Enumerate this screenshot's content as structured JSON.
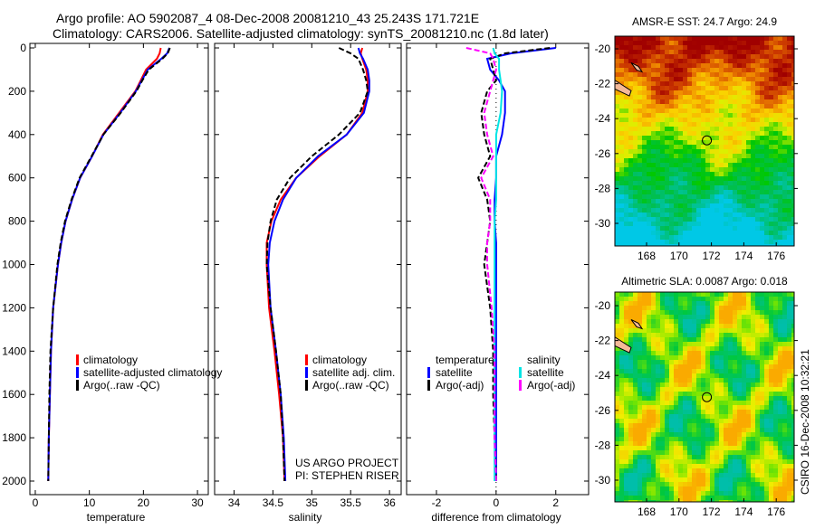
{
  "title_line1": "Argo profile: AO 5902087_4 08-Dec-2008 20081210_43 25.243S 171.721E",
  "title_line2": "Climatology: CARS2006. Satellite-adjusted climatology: synTS_20081210.nc (1.8d later)",
  "credit": "CSIRO 16-Dec-2008 10:32:21",
  "project_line1": "US ARGO PROJECT",
  "project_line2": "PI: STEPHEN RISER",
  "colors": {
    "climatology": "#ff0000",
    "satellite": "#0000ff",
    "argo": "#000000",
    "sal_satellite": "#00e5e5",
    "sal_argo": "#ff00ff"
  },
  "chart_data": [
    {
      "type": "line",
      "xlabel": "temperature",
      "xlim": [
        -1,
        32
      ],
      "ylim": [
        2000,
        0
      ],
      "xticks": [
        "0",
        "10",
        "20",
        "30"
      ],
      "yticks": [
        "0",
        "200",
        "400",
        "600",
        "800",
        "1000",
        "1200",
        "1400",
        "1600",
        "1800",
        "2000"
      ],
      "depth": [
        0,
        25,
        50,
        100,
        150,
        200,
        300,
        400,
        500,
        600,
        700,
        800,
        900,
        1000,
        1200,
        1400,
        1600,
        1800,
        2000
      ],
      "legend": [
        "climatology",
        "satellite-adjusted climatology",
        "Argo(..raw -QC)"
      ],
      "series": [
        {
          "name": "climatology",
          "values": [
            23.2,
            23,
            22.5,
            20.5,
            19.5,
            18.5,
            15.5,
            12.5,
            10.5,
            8.3,
            6.8,
            5.6,
            4.8,
            4.2,
            3.3,
            2.9,
            2.7,
            2.5,
            2.4
          ]
        },
        {
          "name": "satellite-adjusted climatology",
          "values": [
            24.8,
            24.4,
            23.3,
            20.8,
            19.7,
            18.6,
            15.7,
            12.6,
            10.5,
            8.3,
            6.8,
            5.6,
            4.8,
            4.2,
            3.3,
            2.9,
            2.7,
            2.5,
            2.4
          ]
        },
        {
          "name": "Argo(..raw -QC)",
          "values": [
            24.9,
            24.5,
            23.5,
            21,
            19.8,
            18.7,
            15.8,
            12.6,
            10.4,
            8.2,
            6.7,
            5.5,
            4.7,
            4.1,
            3.3,
            2.8,
            2.6,
            2.5,
            2.4
          ]
        }
      ]
    },
    {
      "type": "line",
      "xlabel": "salinity",
      "xlim": [
        33.75,
        36.15
      ],
      "ylim": [
        2000,
        0
      ],
      "xticks": [
        "34",
        "34.5",
        "35",
        "35.5",
        "36"
      ],
      "legend": [
        "climatology",
        "satellite adj. clim.",
        "Argo(..raw -QC)"
      ],
      "series": [
        {
          "name": "climatology",
          "values": [
            35.65,
            35.63,
            35.65,
            35.7,
            35.72,
            35.72,
            35.65,
            35.45,
            35.1,
            34.8,
            34.6,
            34.48,
            34.42,
            34.42,
            34.45,
            34.52,
            34.58,
            34.63,
            34.65
          ]
        },
        {
          "name": "satellite adj. clim.",
          "values": [
            35.6,
            35.62,
            35.66,
            35.72,
            35.74,
            35.74,
            35.67,
            35.45,
            35.08,
            34.8,
            34.63,
            34.52,
            34.46,
            34.44,
            34.47,
            34.54,
            34.6,
            34.64,
            34.66
          ]
        },
        {
          "name": "Argo(..raw -QC)",
          "values": [
            35.35,
            35.5,
            35.6,
            35.66,
            35.7,
            35.72,
            35.62,
            35.35,
            35.0,
            34.72,
            34.55,
            34.47,
            34.43,
            34.42,
            34.47,
            34.54,
            34.6,
            34.63,
            34.65
          ]
        }
      ]
    },
    {
      "type": "line",
      "xlabel": "difference from climatology",
      "xlim": [
        -3,
        3.1
      ],
      "ylim": [
        2000,
        0
      ],
      "xticks": [
        "-2",
        "0",
        "2"
      ],
      "legend_temperature_title": "temperature",
      "legend_salinity_title": "salinity",
      "legend": [
        "satellite",
        "Argo(-adj)",
        "satellite",
        "Argo(-adj)"
      ],
      "series": [
        {
          "name": "temperature satellite",
          "values": [
            2.0,
            0.5,
            -0.3,
            -0.2,
            0.1,
            0.3,
            0.3,
            0.2,
            0,
            0,
            -0.05,
            -0.05,
            0,
            0,
            0,
            0,
            0,
            0,
            0
          ]
        },
        {
          "name": "temperature Argo(-adj)",
          "values": [
            1.8,
            0.3,
            -0.2,
            -0.1,
            0,
            -0.3,
            -0.5,
            -0.4,
            -0.2,
            -0.6,
            -0.3,
            -0.2,
            -0.3,
            -0.4,
            -0.2,
            -0.1,
            -0.1,
            -0.05,
            0
          ]
        },
        {
          "name": "salinity satellite",
          "values": [
            -0.1,
            -0.05,
            0.1,
            0.1,
            0.15,
            0.2,
            0.15,
            0,
            0,
            0,
            0,
            -0.05,
            -0.05,
            -0.05,
            -0.05,
            -0.05,
            -0.05,
            -0.05,
            -0.05
          ]
        },
        {
          "name": "salinity Argo(-adj)",
          "values": [
            -1.0,
            -0.2,
            -0.1,
            0,
            -0.1,
            -0.2,
            -0.4,
            -0.3,
            -0.1,
            -0.5,
            -0.2,
            -0.2,
            -0.3,
            -0.3,
            -0.15,
            -0.05,
            -0.05,
            -0.05,
            0
          ]
        }
      ]
    },
    {
      "type": "heatmap",
      "title": "AMSR-E SST: 24.7 Argo: 24.9",
      "xticks": [
        "168",
        "170",
        "172",
        "174",
        "176"
      ],
      "yticks": [
        "-20",
        "-22",
        "-24",
        "-26",
        "-28",
        "-30"
      ],
      "xlim": [
        166.2,
        177.5
      ],
      "ylim": [
        -31.2,
        -19.3
      ],
      "marker": {
        "lon": 171.721,
        "lat": -25.243
      }
    },
    {
      "type": "heatmap",
      "title": "Altimetric SLA: 0.0087 Argo: 0.018",
      "xticks": [
        "168",
        "170",
        "172",
        "174",
        "176"
      ],
      "yticks": [
        "-20",
        "-22",
        "-24",
        "-26",
        "-28",
        "-30"
      ],
      "xlim": [
        166.2,
        177.5
      ],
      "ylim": [
        -31.2,
        -19.3
      ],
      "marker": {
        "lon": 171.721,
        "lat": -25.243
      }
    }
  ]
}
